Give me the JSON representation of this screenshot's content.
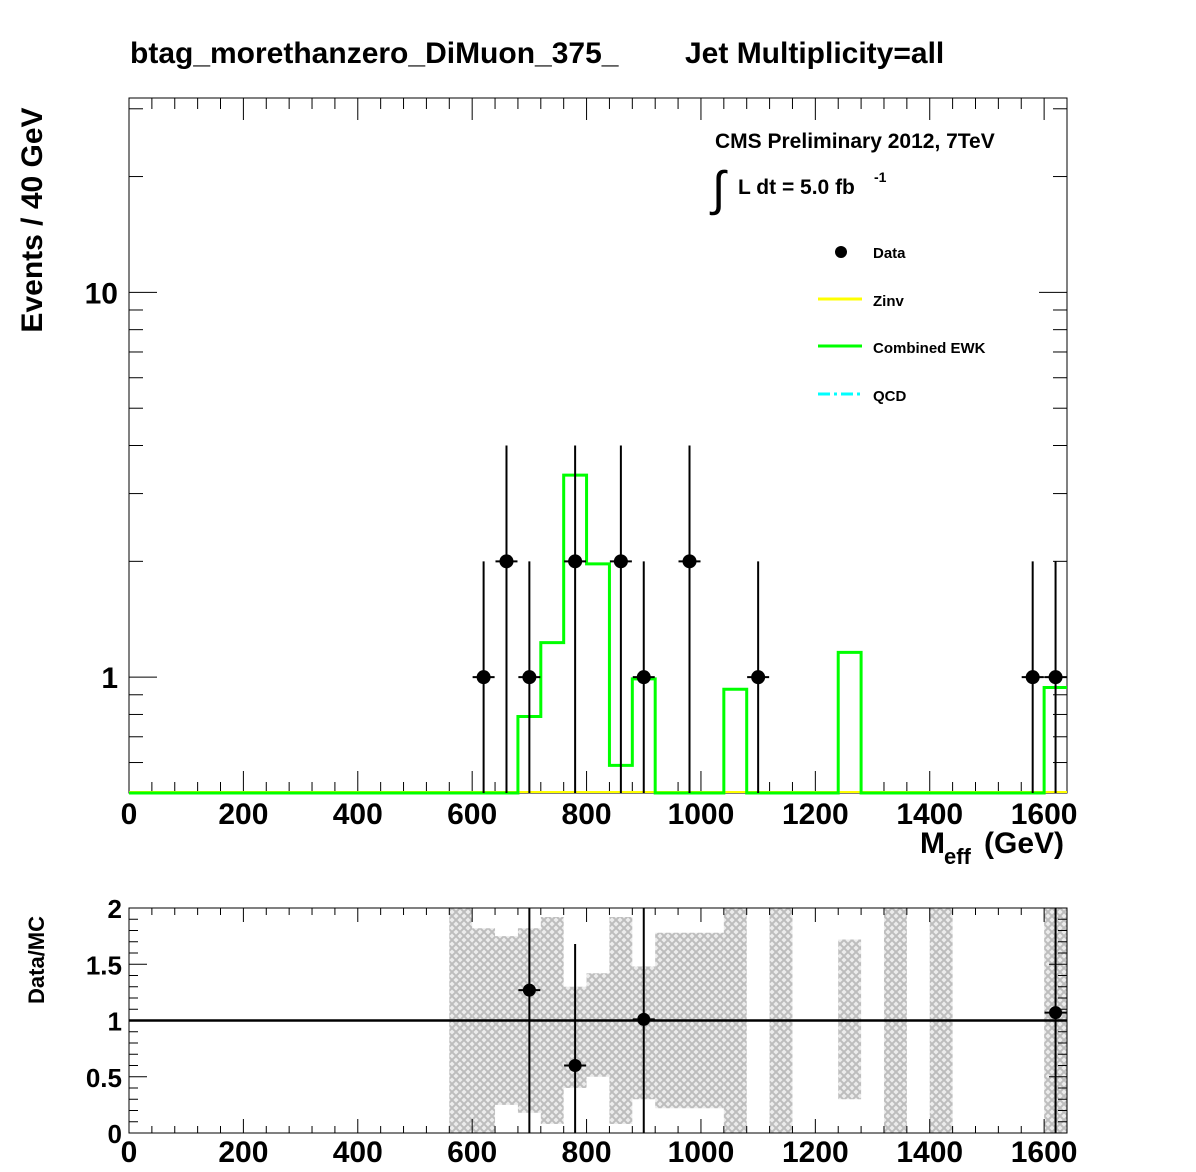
{
  "title_left": "btag_morethanzero_DiMuon_375_",
  "title_right": "Jet Multiplicity=all",
  "cms_text": "CMS Preliminary 2012, 7TeV",
  "lumi_text": "L dt = 5.0 fb",
  "lumi_sup": "-1",
  "integral_symbol": "∫",
  "legend": [
    {
      "label": "Data",
      "color": "#000000",
      "style": "marker"
    },
    {
      "label": "Zinv",
      "color": "#ffff00",
      "style": "line"
    },
    {
      "label": "Combined EWK",
      "color": "#00ff00",
      "style": "line"
    },
    {
      "label": "QCD",
      "color": "#00ffff",
      "style": "dash-dot"
    }
  ],
  "colors": {
    "ewk": "#00ff00",
    "zinv": "#ffff00",
    "qcd": "#00ffff",
    "band": "#c8c8c8",
    "axis": "#000000"
  },
  "chart_data": [
    {
      "type": "line",
      "xlabel_main": "M",
      "xlabel_sub": "eff",
      "xlabel_unit": "(GeV)",
      "ylabel": "Events / 40 GeV",
      "xlim": [
        0,
        1640
      ],
      "ylim": [
        0.5,
        32
      ],
      "y_scale": "log",
      "x_ticks": [
        0,
        200,
        400,
        600,
        800,
        1000,
        1200,
        1400,
        1600
      ],
      "y_tick_labels": [
        {
          "value": 1,
          "label": "1"
        },
        {
          "value": 10,
          "label": "10"
        }
      ],
      "legend_placement": "top-right",
      "grid": false,
      "series": [
        {
          "name": "Data",
          "style": "points",
          "x": [
            620,
            660,
            700,
            780,
            860,
            900,
            980,
            1100,
            1580,
            1620
          ],
          "y": [
            1,
            2,
            1,
            2,
            2,
            1,
            2,
            1,
            1,
            1
          ],
          "yerr_high": [
            2.0,
            4.0,
            2.0,
            4.0,
            4.0,
            2.0,
            4.0,
            2.0,
            2.0,
            2.0
          ]
        },
        {
          "name": "Combined EWK",
          "style": "step",
          "bin_edges": [
            680,
            720,
            760,
            800,
            840,
            880,
            920,
            1040,
            1080,
            1240,
            1280,
            1600,
            1640
          ],
          "values": [
            0.79,
            1.23,
            3.35,
            1.97,
            0.59,
            0.99,
            0.5,
            0.93,
            0.5,
            1.16,
            0.5,
            0.94
          ]
        },
        {
          "name": "Zinv",
          "style": "step",
          "bin_edges": [
            0,
            1640
          ],
          "values": [
            0.5
          ]
        }
      ]
    },
    {
      "type": "scatter",
      "ylabel": "Data/MC",
      "xlim": [
        0,
        1640
      ],
      "ylim": [
        0,
        2
      ],
      "x_ticks": [
        0,
        200,
        400,
        600,
        800,
        1000,
        1200,
        1400,
        1600
      ],
      "y_ticks": [
        {
          "value": 0,
          "label": "0"
        },
        {
          "value": 0.5,
          "label": "0.5"
        },
        {
          "value": 1,
          "label": "1"
        },
        {
          "value": 1.5,
          "label": "1.5"
        },
        {
          "value": 2,
          "label": "2"
        }
      ],
      "reference_line": 1,
      "points": [
        {
          "x": 700,
          "y": 1.27,
          "ylow": 0,
          "yhigh": 2
        },
        {
          "x": 780,
          "y": 0.6,
          "ylow": 0,
          "yhigh": 1.68
        },
        {
          "x": 900,
          "y": 1.01,
          "ylow": 0,
          "yhigh": 2
        },
        {
          "x": 1620,
          "y": 1.07,
          "ylow": 0,
          "yhigh": 2
        }
      ],
      "uncertainty_band": [
        {
          "x0": 560,
          "x1": 600,
          "lo": 0,
          "hi": 2
        },
        {
          "x0": 600,
          "x1": 640,
          "lo": 0,
          "hi": 1.82
        },
        {
          "x0": 640,
          "x1": 680,
          "lo": 0.25,
          "hi": 1.75
        },
        {
          "x0": 680,
          "x1": 720,
          "lo": 0.18,
          "hi": 1.82
        },
        {
          "x0": 720,
          "x1": 760,
          "lo": 0.08,
          "hi": 1.92
        },
        {
          "x0": 760,
          "x1": 800,
          "lo": 0.4,
          "hi": 1.3
        },
        {
          "x0": 800,
          "x1": 840,
          "lo": 0.5,
          "hi": 1.42
        },
        {
          "x0": 840,
          "x1": 880,
          "lo": 0.08,
          "hi": 1.92
        },
        {
          "x0": 880,
          "x1": 920,
          "lo": 0.3,
          "hi": 1.48
        },
        {
          "x0": 920,
          "x1": 1040,
          "lo": 0.22,
          "hi": 1.78
        },
        {
          "x0": 1040,
          "x1": 1080,
          "lo": 0,
          "hi": 2
        },
        {
          "x0": 1120,
          "x1": 1160,
          "lo": 0,
          "hi": 2
        },
        {
          "x0": 1240,
          "x1": 1280,
          "lo": 0.3,
          "hi": 1.72
        },
        {
          "x0": 1320,
          "x1": 1360,
          "lo": 0,
          "hi": 2
        },
        {
          "x0": 1400,
          "x1": 1440,
          "lo": 0,
          "hi": 2
        },
        {
          "x0": 1600,
          "x1": 1640,
          "lo": 0,
          "hi": 2
        }
      ]
    }
  ]
}
